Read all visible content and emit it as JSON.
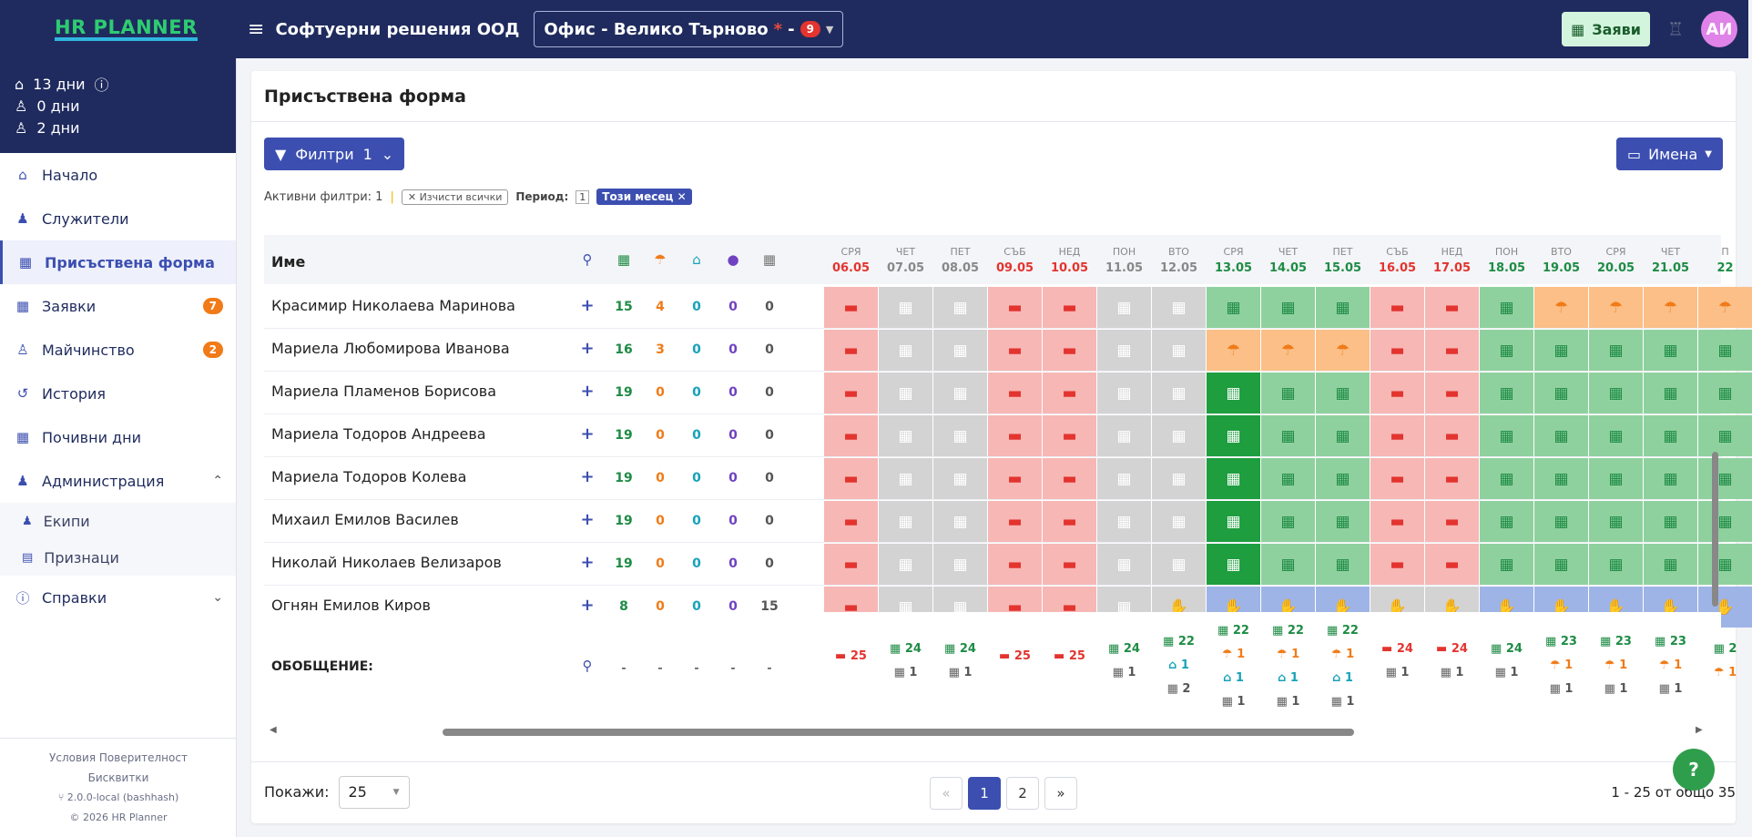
{
  "app": {
    "logo": "HR PLANNER",
    "company": "Софтуерни решения ООД",
    "office": "Офис - Велико Търново",
    "office_star": "*",
    "office_dash": "-",
    "office_count": "9",
    "requests_btn": "Заяви",
    "avatar": "АИ"
  },
  "sidebar": {
    "stats": [
      {
        "icon": "home-leave-icon",
        "text": "13 дни",
        "info": "ⓘ"
      },
      {
        "icon": "user-sick-icon",
        "text": "0 дни"
      },
      {
        "icon": "user-other-icon",
        "text": "2 дни"
      }
    ],
    "items": [
      {
        "label": "Начало",
        "icon": "home-icon"
      },
      {
        "label": "Служители",
        "icon": "users-icon"
      },
      {
        "label": "Присъствена форма",
        "icon": "calendar-icon",
        "active": true
      },
      {
        "label": "Заявки",
        "icon": "calendar-icon",
        "badge": "7"
      },
      {
        "label": "Майчинство",
        "icon": "baby-icon",
        "badge": "2"
      },
      {
        "label": "История",
        "icon": "history-icon"
      },
      {
        "label": "Почивни дни",
        "icon": "calendar-icon"
      },
      {
        "label": "Администрация",
        "icon": "users-icon",
        "expanded": true
      }
    ],
    "subitems": [
      {
        "label": "Екипи",
        "icon": "team-icon"
      },
      {
        "label": "Признаци",
        "icon": "file-icon"
      }
    ],
    "reports": "Справки",
    "footer": {
      "terms": "Условия",
      "privacy": "Поверителност",
      "cookies": "Бисквитки",
      "version": "2.0.0-local (bashhash)",
      "copyright": "© 2026  HR Planner"
    }
  },
  "page": {
    "title": "Присъствена форма",
    "filters_btn": "Филтри",
    "filters_count": "1",
    "names_btn": "Имена",
    "active_filters": "Активни филтри: 1",
    "clear_all": "Изчисти всички",
    "period_label": "Период:",
    "period_count": "1",
    "period_value": "Този месец"
  },
  "table": {
    "name_header": "Име",
    "header_icons": [
      {
        "icon": "pin-icon",
        "color": "#3c4fb0"
      },
      {
        "icon": "calendar-icon",
        "color": "#1e8c45"
      },
      {
        "icon": "umbrella-icon",
        "color": "#f07b18"
      },
      {
        "icon": "home-leave-icon",
        "color": "#17a2b8"
      },
      {
        "icon": "pills-icon",
        "color": "#6f42c1"
      },
      {
        "icon": "calendar-grey-icon",
        "color": "#777"
      }
    ],
    "days": [
      {
        "dow": "СРЯ",
        "date": "06.05",
        "color": "#e3342f"
      },
      {
        "dow": "ЧЕТ",
        "date": "07.05",
        "color": "#888"
      },
      {
        "dow": "ПЕТ",
        "date": "08.05",
        "color": "#888"
      },
      {
        "dow": "СЪБ",
        "date": "09.05",
        "color": "#e3342f"
      },
      {
        "dow": "НЕД",
        "date": "10.05",
        "color": "#e3342f"
      },
      {
        "dow": "ПОН",
        "date": "11.05",
        "color": "#888"
      },
      {
        "dow": "ВТО",
        "date": "12.05",
        "color": "#888"
      },
      {
        "dow": "СРЯ",
        "date": "13.05",
        "color": "#1e8c45"
      },
      {
        "dow": "ЧЕТ",
        "date": "14.05",
        "color": "#1e8c45"
      },
      {
        "dow": "ПЕТ",
        "date": "15.05",
        "color": "#1e8c45"
      },
      {
        "dow": "СЪБ",
        "date": "16.05",
        "color": "#e3342f"
      },
      {
        "dow": "НЕД",
        "date": "17.05",
        "color": "#e3342f"
      },
      {
        "dow": "ПОН",
        "date": "18.05",
        "color": "#1e8c45"
      },
      {
        "dow": "ВТО",
        "date": "19.05",
        "color": "#1e8c45"
      },
      {
        "dow": "СРЯ",
        "date": "20.05",
        "color": "#1e8c45"
      },
      {
        "dow": "ЧЕТ",
        "date": "21.05",
        "color": "#1e8c45"
      },
      {
        "dow": "П",
        "date": "22",
        "color": "#1e8c45"
      }
    ],
    "rows": [
      {
        "name": "Красимир Николаева Маринова",
        "plus": "+",
        "counts": [
          "15",
          "4",
          "0",
          "0",
          "0"
        ],
        "cells": "RGGRRGGWWWRRWUUUU"
      },
      {
        "name": "Мариела Любомирова Иванова",
        "plus": "+",
        "counts": [
          "16",
          "3",
          "0",
          "0",
          "0"
        ],
        "cells": "RGGRRGGOOORRWWWWW"
      },
      {
        "name": "Мариела Пламенов Борисова",
        "plus": "+",
        "counts": [
          "19",
          "0",
          "0",
          "0",
          "0"
        ],
        "cells": "RGGRRGGDWWRRWWWWW"
      },
      {
        "name": "Мариела Тодоров Андреева",
        "plus": "+",
        "counts": [
          "19",
          "0",
          "0",
          "0",
          "0"
        ],
        "cells": "RGGRRGGDWWRRWWWWW"
      },
      {
        "name": "Мариела Тодоров Колева",
        "plus": "+",
        "counts": [
          "19",
          "0",
          "0",
          "0",
          "0"
        ],
        "cells": "RGGRRGGDWWRRWWWWW"
      },
      {
        "name": "Михаил Емилов Василев",
        "plus": "+",
        "counts": [
          "19",
          "0",
          "0",
          "0",
          "0"
        ],
        "cells": "RGGRRGGDWWRRWWWWW"
      },
      {
        "name": "Николай Николаев Велизаров",
        "plus": "+",
        "counts": [
          "19",
          "0",
          "0",
          "0",
          "0"
        ],
        "cells": "RGGRRGGDWWRRWWWWW"
      },
      {
        "name": "Огнян Емилов Киров",
        "plus": "+",
        "counts": [
          "8",
          "0",
          "0",
          "0",
          "15"
        ],
        "cells": "RGGRRGHBBBHHBBBBB"
      }
    ],
    "summary": {
      "title": "ОБОБЩЕНИЕ:",
      "dashes": [
        "-",
        "-",
        "-",
        "-",
        "-"
      ],
      "cols": [
        [
          "R25"
        ],
        [
          "W24",
          "G1"
        ],
        [
          "W24",
          "G1"
        ],
        [
          "R25"
        ],
        [
          "R25"
        ],
        [
          "W24",
          "G1"
        ],
        [
          "W22",
          "H1",
          "G2"
        ],
        [
          "W22",
          "O1",
          "H1",
          "G1"
        ],
        [
          "W22",
          "O1",
          "H1",
          "G1"
        ],
        [
          "W22",
          "O1",
          "H1",
          "G1"
        ],
        [
          "R24",
          "G1"
        ],
        [
          "R24",
          "G1"
        ],
        [
          "W24",
          "G1"
        ],
        [
          "W23",
          "O1",
          "G1"
        ],
        [
          "W23",
          "O1",
          "G1"
        ],
        [
          "W23",
          "O1",
          "G1"
        ],
        [
          "W2",
          "O1"
        ]
      ]
    }
  },
  "pagination": {
    "show_label": "Покажи:",
    "page_size": "25",
    "prev": "«",
    "pages": [
      "1",
      "2"
    ],
    "next": "»",
    "info": "1 - 25 от общо 35"
  },
  "help": "?",
  "colors": {
    "red": "#f7b7b5",
    "red_icon": "#e3342f",
    "grey": "#d3d3d3",
    "green": "#8fd19e",
    "green_icon": "#1e8c45",
    "dark_green": "#1e9e3f",
    "orange": "#fbbf87",
    "orange_dark": "#f07b18",
    "blue": "#9fb4e6",
    "blue_icon": "#3c4fb0"
  }
}
